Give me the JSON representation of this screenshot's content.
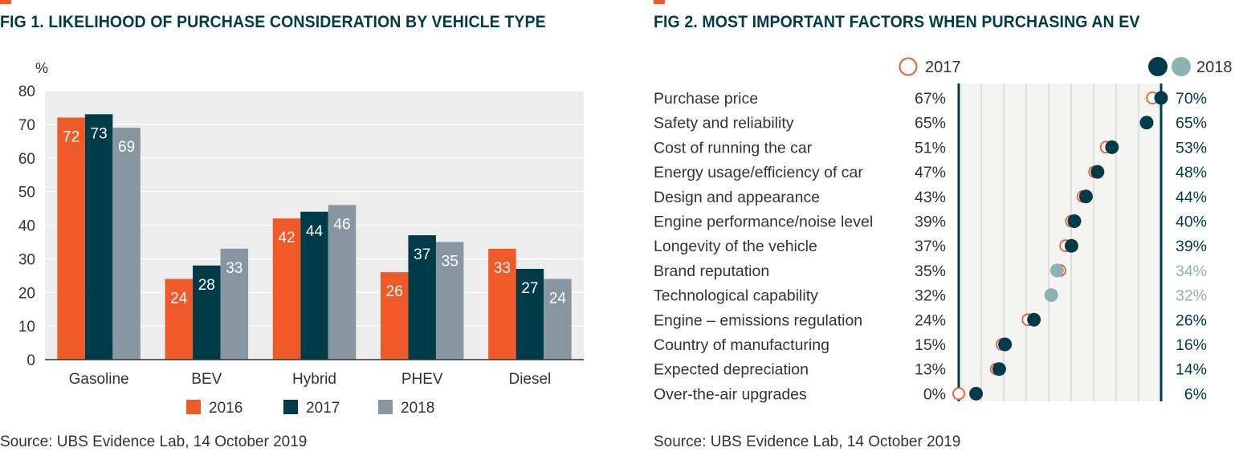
{
  "colors": {
    "c2016": "#f05a28",
    "c2017": "#003b4a",
    "c2018": "#8896a1",
    "dot2018_faded": "#8db3b0",
    "title": "#003b4a",
    "panel": "#ededed"
  },
  "fig1": {
    "source": "Source: UBS Evidence Lab, 14 October 2019"
  },
  "fig2": {
    "source": "Source: UBS Evidence Lab, 14 October 2019"
  },
  "chart_data": [
    {
      "type": "bar",
      "title": "FIG 1. LIKELIHOOD OF PURCHASE CONSIDERATION BY VEHICLE TYPE",
      "ylabel": "%",
      "xlabel": "",
      "ylim": [
        0,
        80
      ],
      "yticks": [
        0,
        10,
        20,
        30,
        40,
        50,
        60,
        70,
        80
      ],
      "grid": true,
      "legend": "bottom-center",
      "categories": [
        "Gasoline",
        "BEV",
        "Hybrid",
        "PHEV",
        "Diesel"
      ],
      "series": [
        {
          "name": "2016",
          "color": "#f05a28",
          "values": [
            72,
            24,
            42,
            26,
            33
          ]
        },
        {
          "name": "2017",
          "color": "#003b4a",
          "values": [
            73,
            28,
            44,
            37,
            27
          ]
        },
        {
          "name": "2018",
          "color": "#8896a1",
          "values": [
            69,
            33,
            46,
            35,
            24
          ]
        }
      ]
    },
    {
      "type": "scatter",
      "title": "FIG 2. MOST IMPORTANT FACTORS WHEN PURCHASING AN EV",
      "xlim": [
        0,
        70
      ],
      "legend": "top-right",
      "legend_labels": [
        "2017",
        "2018"
      ],
      "categories": [
        "Purchase price",
        "Safety and reliability",
        "Cost of running the car",
        "Energy usage/efficiency of car",
        "Design and appearance",
        "Engine performance/noise level",
        "Longevity of the vehicle",
        "Brand reputation",
        "Technological capability",
        "Engine – emissions regulation",
        "Country of manufacturing",
        "Expected depreciation",
        "Over-the-air upgrades"
      ],
      "series": [
        {
          "name": "2017",
          "values": [
            67,
            65,
            51,
            47,
            43,
            39,
            37,
            35,
            32,
            24,
            15,
            13,
            0
          ],
          "labels": [
            "67%",
            "65%",
            "51%",
            "47%",
            "43%",
            "39%",
            "37%",
            "35%",
            "32%",
            "24%",
            "15%",
            "13%",
            "0%"
          ]
        },
        {
          "name": "2018",
          "values": [
            70,
            65,
            53,
            48,
            44,
            40,
            39,
            34,
            32,
            26,
            16,
            14,
            6
          ],
          "labels": [
            "70%",
            "65%",
            "53%",
            "48%",
            "44%",
            "40%",
            "39%",
            "34%",
            "32%",
            "26%",
            "16%",
            "14%",
            "6%"
          ],
          "decreased": [
            false,
            false,
            false,
            false,
            false,
            false,
            false,
            true,
            true,
            false,
            false,
            false,
            false
          ]
        }
      ]
    }
  ]
}
